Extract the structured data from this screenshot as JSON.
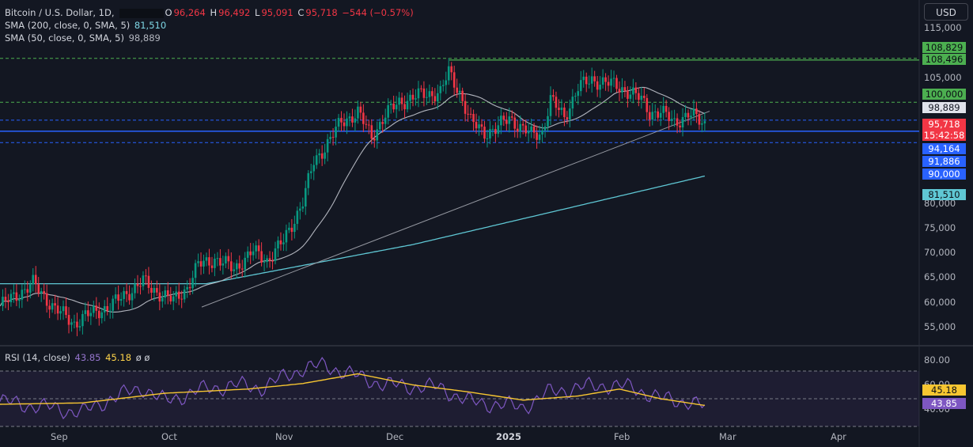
{
  "legend": {
    "symbol": "Bitcoin / U.S. Dollar, 1D,",
    "open_label": "O",
    "open": "96,264",
    "high_label": "H",
    "high": "96,492",
    "low_label": "L",
    "low": "95,091",
    "close_label": "C",
    "close": "95,718",
    "change": "−544 (−0.57%)",
    "sma200_label": "SMA (200, close, 0, SMA, 5)",
    "sma200_value": "81,510",
    "sma50_label": "SMA (50, close, 0, SMA, 5)",
    "sma50_value": "98,889",
    "rsi_label": "RSI (14, close)",
    "rsi_value": "43.85",
    "rsi_ma_value": "45.18",
    "rsi_extra": "ø  ø"
  },
  "currency_button": "USD",
  "price_axis": [
    "115,000",
    "105,000",
    "80,000",
    "75,000",
    "70,000",
    "65,000",
    "60,000",
    "55,000"
  ],
  "rsi_axis": [
    "80.00",
    "60.00",
    "40.00"
  ],
  "time_axis": [
    "Sep",
    "Oct",
    "Nov",
    "Dec",
    "2025",
    "Feb",
    "Mar",
    "Apr"
  ],
  "price_tags": {
    "t108829": "108,829",
    "t108496": "108,496",
    "t100000": "100,000",
    "t98889": "98,889",
    "t95718": "95,718",
    "countdown": "15:42:58",
    "t94164": "94,164",
    "t91886": "91,886",
    "t90000": "90,000",
    "t81510": "81,510",
    "rsi_ma": "45.18",
    "rsi": "43.85"
  },
  "colors": {
    "up": "#089981",
    "down": "#f23645",
    "sma50": "#b2b5be",
    "sma200": "#5fc7d4",
    "rsi": "#7e57c2",
    "rsi_ma": "#f7c631",
    "background": "#131722"
  },
  "chart_data": {
    "type": "candlestick",
    "title": "Bitcoin / U.S. Dollar, 1D",
    "ylim": [
      52000,
      118000
    ],
    "y_scale": "linear",
    "levels": [
      108829,
      108496,
      100000,
      94164,
      91886,
      90000
    ],
    "series_labels": [
      "SMA (200, close, 0, SMA, 5)",
      "SMA (50, close, 0, SMA, 5)"
    ],
    "close_path": [
      [
        0,
        59000
      ],
      [
        12,
        63500
      ],
      [
        20,
        58500
      ],
      [
        27,
        55500
      ],
      [
        31,
        57000
      ],
      [
        40,
        59000
      ],
      [
        52,
        64000
      ],
      [
        55,
        62500
      ],
      [
        60,
        61000
      ],
      [
        63,
        60000
      ],
      [
        68,
        62800
      ],
      [
        72,
        67200
      ],
      [
        78,
        68500
      ],
      [
        85,
        66500
      ],
      [
        92,
        70000
      ],
      [
        97,
        68200
      ],
      [
        103,
        72000
      ],
      [
        110,
        80000
      ],
      [
        114,
        88000
      ],
      [
        118,
        91000
      ],
      [
        124,
        96000
      ],
      [
        130,
        98000
      ],
      [
        135,
        93000
      ],
      [
        140,
        97500
      ],
      [
        145,
        100000
      ],
      [
        153,
        101500
      ],
      [
        160,
        102000
      ],
      [
        163,
        106000
      ],
      [
        167,
        102000
      ],
      [
        171,
        96000
      ],
      [
        176,
        94000
      ],
      [
        180,
        94500
      ],
      [
        185,
        97000
      ],
      [
        190,
        94500
      ],
      [
        193,
        93500
      ],
      [
        197,
        94000
      ],
      [
        200,
        100500
      ],
      [
        205,
        97000
      ],
      [
        210,
        103000
      ],
      [
        215,
        104500
      ],
      [
        220,
        104000
      ],
      [
        225,
        103000
      ],
      [
        229,
        102000
      ],
      [
        233,
        100500
      ],
      [
        236,
        98000
      ],
      [
        240,
        98000
      ],
      [
        245,
        96000
      ],
      [
        250,
        97500
      ],
      [
        253,
        96800
      ],
      [
        256,
        95718
      ]
    ],
    "rsi": {
      "ylim": [
        30,
        85
      ],
      "levels": [
        70,
        50,
        30
      ],
      "path": [
        [
          0,
          48
        ],
        [
          20,
          43
        ],
        [
          30,
          40
        ],
        [
          40,
          50
        ],
        [
          52,
          58
        ],
        [
          60,
          48
        ],
        [
          72,
          56
        ],
        [
          85,
          60
        ],
        [
          95,
          58
        ],
        [
          110,
          72
        ],
        [
          118,
          74
        ],
        [
          130,
          66
        ],
        [
          140,
          60
        ],
        [
          160,
          58
        ],
        [
          170,
          48
        ],
        [
          180,
          46
        ],
        [
          190,
          44
        ],
        [
          200,
          55
        ],
        [
          210,
          58
        ],
        [
          220,
          60
        ],
        [
          230,
          58
        ],
        [
          240,
          50
        ],
        [
          250,
          48
        ],
        [
          256,
          43.85
        ]
      ],
      "ma_path": [
        [
          0,
          46
        ],
        [
          30,
          47
        ],
        [
          60,
          54
        ],
        [
          90,
          57
        ],
        [
          110,
          61
        ],
        [
          130,
          68
        ],
        [
          150,
          60
        ],
        [
          170,
          55
        ],
        [
          190,
          49
        ],
        [
          210,
          52
        ],
        [
          225,
          57
        ],
        [
          240,
          50
        ],
        [
          256,
          45.18
        ]
      ]
    }
  }
}
